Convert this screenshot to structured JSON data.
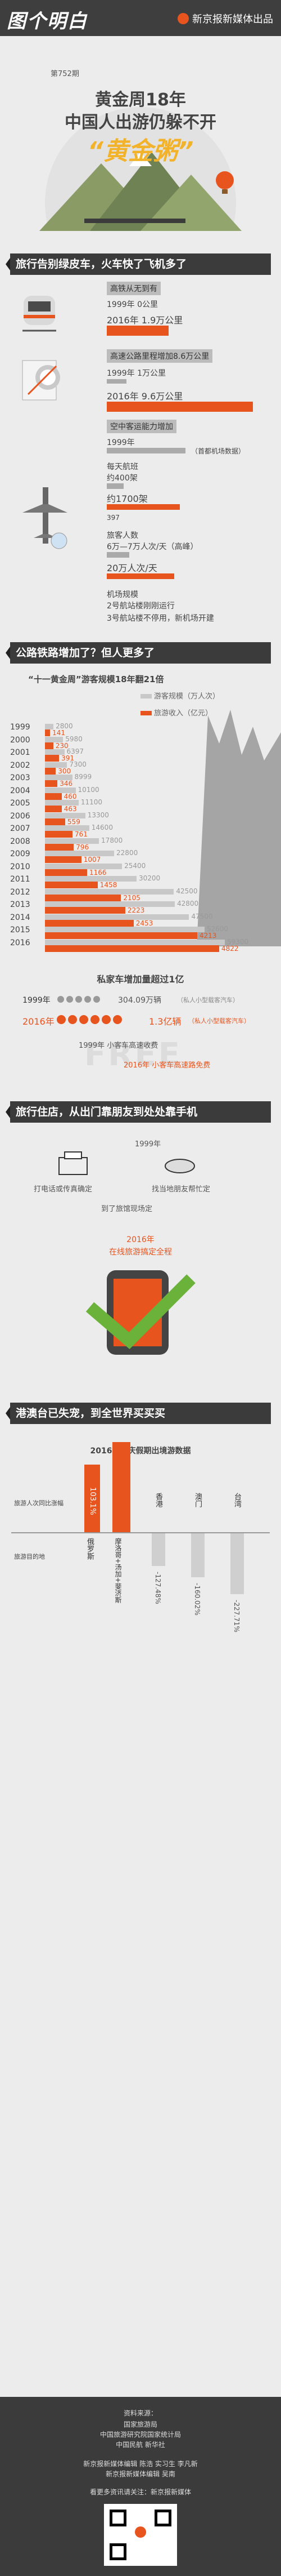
{
  "header": {
    "brand": "图个明白",
    "publisher": "新京报新媒体出品",
    "issue": "第752期"
  },
  "hero": {
    "title_line1": "黄金周18年",
    "title_line2": "中国人出游仍躲不开",
    "title_line3": "“黄金粥”"
  },
  "section1": {
    "banner": "旅行告别绿皮车，火车快了飞机多了",
    "rail": {
      "label": "高铁从无到有",
      "v1999": "1999年  0公里",
      "v2016": "2016年  1.9万公里"
    },
    "highway": {
      "label": "高速公路里程增加8.6万公里",
      "v1999": "1999年  1万公里",
      "v2016": "2016年  9.6万公里"
    },
    "airport": {
      "label": "空中客运能力增加",
      "year": "1999年",
      "note": "（首都机场数据）",
      "flights_label": "每天航班",
      "flights_1999": "约400架",
      "flights_1999_num": "397",
      "flights_2016": "约1700架",
      "passengers_label": "旅客人数",
      "passengers_1999": "6万—7万人次/天（高峰）",
      "passengers_2016": "20万人次/天",
      "terminal_label": "机场规模",
      "terminal_1999": "2号航站楼刚刚运行",
      "terminal_2016": "3号航站楼不停用，新机场开建"
    }
  },
  "section2": {
    "banner": "公路铁路增加了？但人更多了",
    "chart_title": "“十一黄金周”游客规模18年翻21倍",
    "legend_tourist": "游客规模（万人次）",
    "legend_income": "旅游收入（亿元）"
  },
  "chart_data": {
    "type": "bar",
    "title": "“十一黄金周”游客规模18年翻21倍",
    "categories": [
      "1999",
      "2000",
      "2001",
      "2002",
      "2003",
      "2004",
      "2005",
      "2006",
      "2007",
      "2008",
      "2009",
      "2010",
      "2011",
      "2012",
      "2013",
      "2014",
      "2015",
      "2016"
    ],
    "series": [
      {
        "name": "游客规模（万人次）",
        "values": [
          2800,
          5980,
          6397,
          7300,
          8999,
          10100,
          11100,
          13300,
          14600,
          17800,
          22800,
          25400,
          30200,
          42500,
          42800,
          47500,
          52600,
          59300
        ]
      },
      {
        "name": "旅游收入（亿元）",
        "values": [
          141,
          230,
          391,
          300,
          346,
          460,
          463,
          559,
          761,
          796,
          1007,
          1166,
          1458,
          2105,
          2223,
          2453,
          4213,
          4822
        ]
      }
    ],
    "colors": {
      "tourist": "#c8c8c8",
      "income": "#e8541e"
    }
  },
  "cars": {
    "title": "私家车增加量超过1亿",
    "y1999": "1999年",
    "v1999": "304.09万辆",
    "n1999": "（私人小型载客汽车）",
    "y2016": "2016年",
    "v2016": "1.3亿辆",
    "n2016": "（私人小型载客汽车）",
    "toll1": "1999年  小客车高速收费",
    "toll2": "2016年  小客车高速路免费",
    "free": "FREE"
  },
  "section3": {
    "banner": "旅行住店，从出门靠朋友到处处靠手机",
    "y1999": "1999年",
    "a1": "打电话或传真确定",
    "a2": "找当地朋友帮忙定",
    "a3": "到了旅馆现场定",
    "y2016": "2016年",
    "b1": "在线旅游搞定全程"
  },
  "section4": {
    "banner": "港澳台已失宠，到全世界买买买",
    "chart_title": "2016年国庆假期出境游数据",
    "row1": "旅游人次同比涨幅",
    "row2": "旅游目的地",
    "dest": [
      "俄罗斯",
      "摩洛哥+汤加+斐济斯",
      "香港",
      "澳门",
      "台湾"
    ],
    "vals": [
      "103.1%",
      "",
      "-127.48%",
      "-160.02%",
      "-227.71%"
    ]
  },
  "footer": {
    "source_title": "资料来源：",
    "s1": "国家旅游局",
    "s2": "中国旅游研究院国家统计局",
    "s3": "中国民航 新华社",
    "credits1": "新京报新媒体编辑 陈浩  实习生 李凡新",
    "credits2": "新京报新媒体编辑 吴南",
    "more": "看更多资讯请关注：新京报新媒体"
  }
}
